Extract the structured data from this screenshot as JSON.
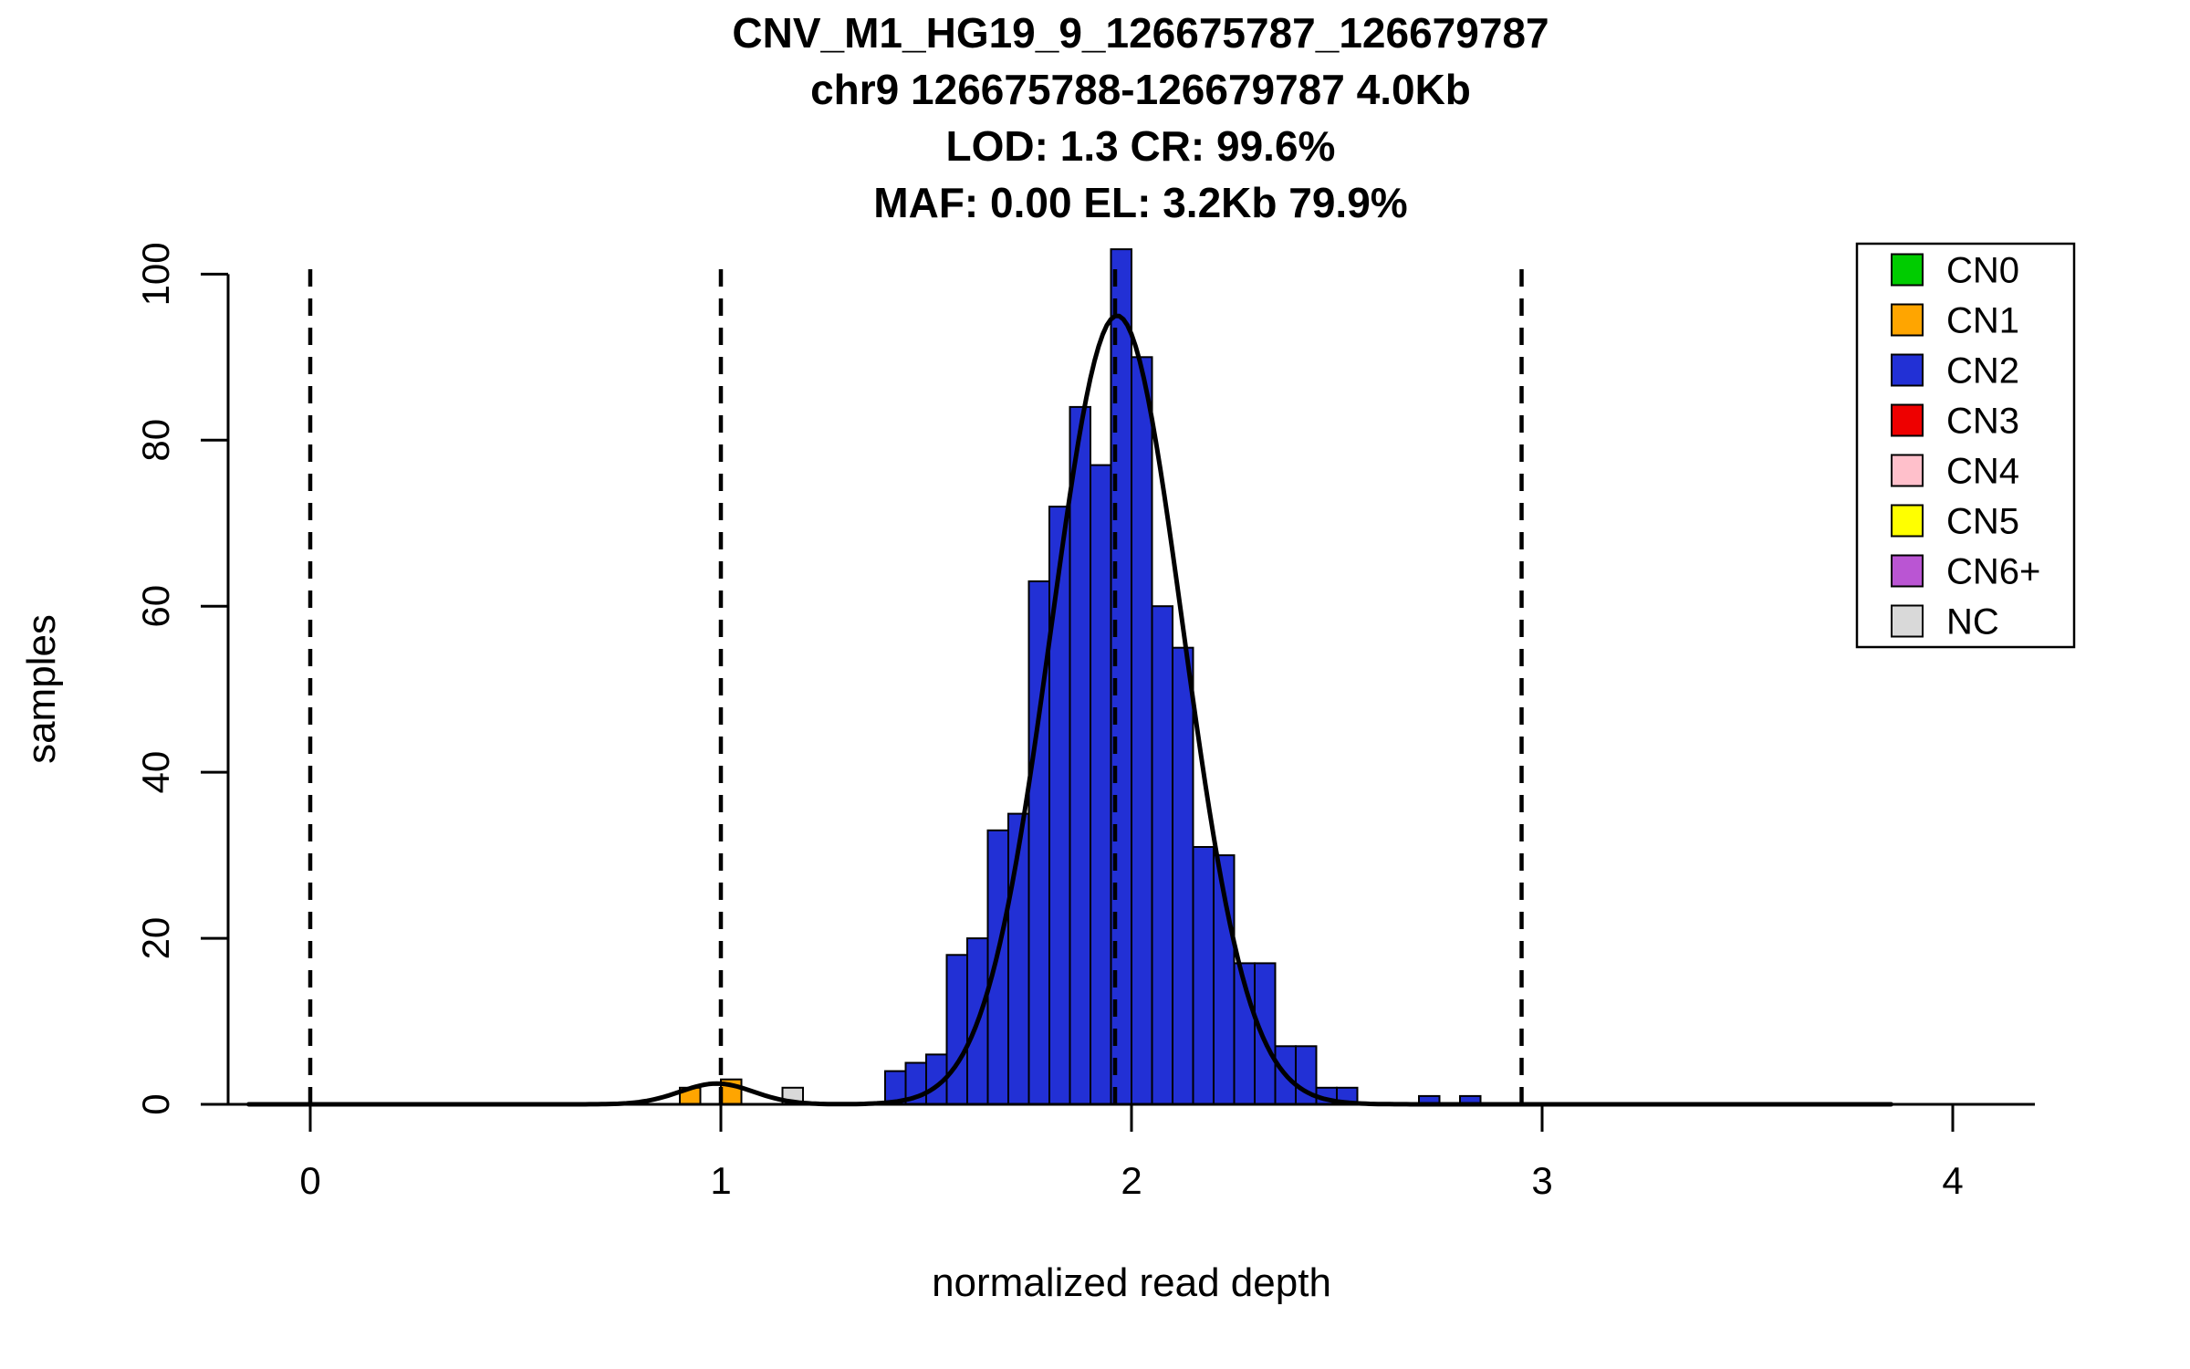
{
  "chart_data": {
    "type": "bar",
    "title_lines": [
      "CNV_M1_HG19_9_126675787_126679787",
      "chr9 126675788-126679787 4.0Kb",
      "LOD: 1.3 CR: 99.6%",
      "MAF: 0.00 EL: 3.2Kb 79.9%"
    ],
    "xlabel": "normalized read depth",
    "ylabel": "samples",
    "x_ticks": [
      0,
      1,
      2,
      3,
      4
    ],
    "y_ticks": [
      0,
      20,
      40,
      60,
      80,
      100
    ],
    "xlim": [
      -0.2,
      4.2
    ],
    "ylim": [
      0,
      104
    ],
    "grid": false,
    "legend_position": "top-right",
    "bin_width": 0.05,
    "bars": [
      {
        "x": 0.9,
        "h": 2,
        "cn": "CN1"
      },
      {
        "x": 1.0,
        "h": 3,
        "cn": "CN1"
      },
      {
        "x": 1.15,
        "h": 2,
        "cn": "NC"
      },
      {
        "x": 1.4,
        "h": 4,
        "cn": "CN2"
      },
      {
        "x": 1.45,
        "h": 5,
        "cn": "CN2"
      },
      {
        "x": 1.5,
        "h": 6,
        "cn": "CN2"
      },
      {
        "x": 1.55,
        "h": 18,
        "cn": "CN2"
      },
      {
        "x": 1.6,
        "h": 20,
        "cn": "CN2"
      },
      {
        "x": 1.65,
        "h": 33,
        "cn": "CN2"
      },
      {
        "x": 1.7,
        "h": 35,
        "cn": "CN2"
      },
      {
        "x": 1.75,
        "h": 63,
        "cn": "CN2"
      },
      {
        "x": 1.8,
        "h": 72,
        "cn": "CN2"
      },
      {
        "x": 1.85,
        "h": 84,
        "cn": "CN2"
      },
      {
        "x": 1.9,
        "h": 77,
        "cn": "CN2"
      },
      {
        "x": 1.95,
        "h": 103,
        "cn": "CN2"
      },
      {
        "x": 2.0,
        "h": 90,
        "cn": "CN2"
      },
      {
        "x": 2.05,
        "h": 60,
        "cn": "CN2"
      },
      {
        "x": 2.1,
        "h": 55,
        "cn": "CN2"
      },
      {
        "x": 2.15,
        "h": 31,
        "cn": "CN2"
      },
      {
        "x": 2.2,
        "h": 30,
        "cn": "CN2"
      },
      {
        "x": 2.25,
        "h": 17,
        "cn": "CN2"
      },
      {
        "x": 2.3,
        "h": 17,
        "cn": "CN2"
      },
      {
        "x": 2.35,
        "h": 7,
        "cn": "CN2"
      },
      {
        "x": 2.4,
        "h": 7,
        "cn": "CN2"
      },
      {
        "x": 2.45,
        "h": 2,
        "cn": "CN2"
      },
      {
        "x": 2.5,
        "h": 2,
        "cn": "CN2"
      },
      {
        "x": 2.7,
        "h": 1,
        "cn": "CN2"
      },
      {
        "x": 2.8,
        "h": 1,
        "cn": "CN2"
      }
    ],
    "dashed_lines_x": [
      0,
      1,
      1.96,
      2.95
    ],
    "curve_components": [
      {
        "mean": 1.965,
        "sd": 0.16,
        "amp": 95
      },
      {
        "mean": 0.99,
        "sd": 0.09,
        "amp": 2.5
      }
    ],
    "curve_range": [
      -0.15,
      3.85
    ],
    "legend": [
      {
        "label": "CN0",
        "color": "#00CC00"
      },
      {
        "label": "CN1",
        "color": "#FFA500"
      },
      {
        "label": "CN2",
        "color": "#2230D5"
      },
      {
        "label": "CN3",
        "color": "#EE0000"
      },
      {
        "label": "CN4",
        "color": "#FFC0CB"
      },
      {
        "label": "CN5",
        "color": "#FFFF00"
      },
      {
        "label": "CN6+",
        "color": "#BA55D3"
      },
      {
        "label": "NC",
        "color": "#D9D9D9"
      }
    ]
  }
}
